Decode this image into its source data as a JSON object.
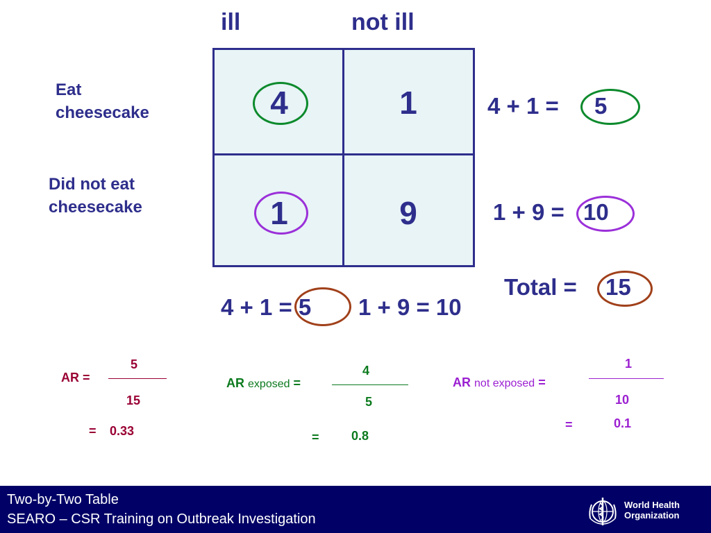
{
  "headers": {
    "ill": "ill",
    "not_ill": "not ill"
  },
  "rows": [
    {
      "label_line1": "Eat",
      "label_line2": "cheesecake"
    },
    {
      "label_line1": "Did not eat",
      "label_line2": "cheesecake"
    }
  ],
  "cells": {
    "a": "4",
    "b": "1",
    "c": "1",
    "d": "9"
  },
  "row_sums": {
    "r1_expr": "4 + 1 =",
    "r1_val": "5",
    "r2_expr": "1 + 9 =",
    "r2_val": "10"
  },
  "total": {
    "label": "Total =",
    "value": "15"
  },
  "column_sums": {
    "c1": "4 + 1 = 5",
    "c2": "1 + 9 = 10"
  },
  "ar": {
    "label": "AR =",
    "num": "5",
    "den": "15",
    "result_eq": "=",
    "result": "0.33"
  },
  "ar_exposed": {
    "label": "AR",
    "sub": "exposed",
    "eq": "=",
    "num": "4",
    "den": "5",
    "result_eq": "=",
    "result": "0.8"
  },
  "ar_not_exposed": {
    "label": "AR",
    "sub": "not exposed",
    "eq": "=",
    "num": "1",
    "den": "10",
    "result_eq": "=",
    "result": "0.1"
  },
  "footer": {
    "line1": "Two-by-Two Table",
    "line2": "SEARO – CSR Training on Outbreak Investigation",
    "org_line1": "World Health",
    "org_line2": "Organization"
  },
  "colors": {
    "navy": "#2e2e8c",
    "table_fill": "#e8f4f6",
    "green": "#0c8a2c",
    "purple": "#9b30d9",
    "brown": "#a0401a",
    "maroon": "#990033",
    "footer_bg": "#000066"
  }
}
